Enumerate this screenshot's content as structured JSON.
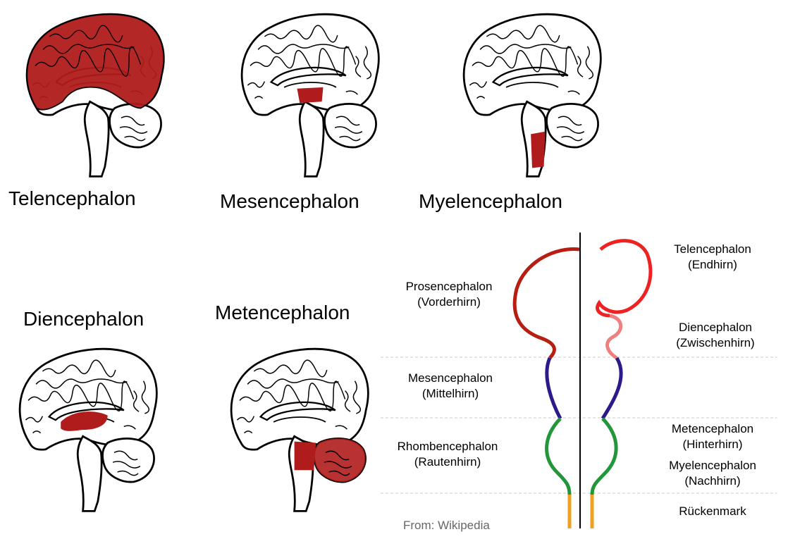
{
  "colors": {
    "highlight": "#b01c1c",
    "prosencephalon": "#b81d12",
    "telencephalon": "#ee2222",
    "diencephalon": "#f08080",
    "mesencephalon": "#2a1a8a",
    "rhombencephalon": "#22963a",
    "spinal_cord": "#f0a020",
    "divider": "#c8c8c8"
  },
  "brain_views": [
    {
      "region": "telencephalon",
      "label": "Telencephalon"
    },
    {
      "region": "mesencephalon",
      "label": "Mesencephalon"
    },
    {
      "region": "myelencephalon",
      "label": "Myelencephalon"
    },
    {
      "region": "diencephalon",
      "label": "Diencephalon"
    },
    {
      "region": "metencephalon",
      "label": "Metencephalon"
    }
  ],
  "diagram": {
    "left": [
      {
        "name": "Prosencephalon",
        "german": "(Vorderhirn)"
      },
      {
        "name": "Mesencephalon",
        "german": "(Mittelhirn)"
      },
      {
        "name": "Rhombencephalon",
        "german": "(Rautenhirn)"
      }
    ],
    "right": [
      {
        "name": "Telencephalon",
        "german": "(Endhirn)"
      },
      {
        "name": "Diencephalon",
        "german": "(Zwischenhirn)"
      },
      {
        "name": "Metencephalon",
        "german": "(Hinterhirn)"
      },
      {
        "name": "Myelencephalon",
        "german": "(Nachhirn)"
      },
      {
        "name": "Rückenmark",
        "german": ""
      }
    ]
  },
  "credit": "From: Wikipedia"
}
